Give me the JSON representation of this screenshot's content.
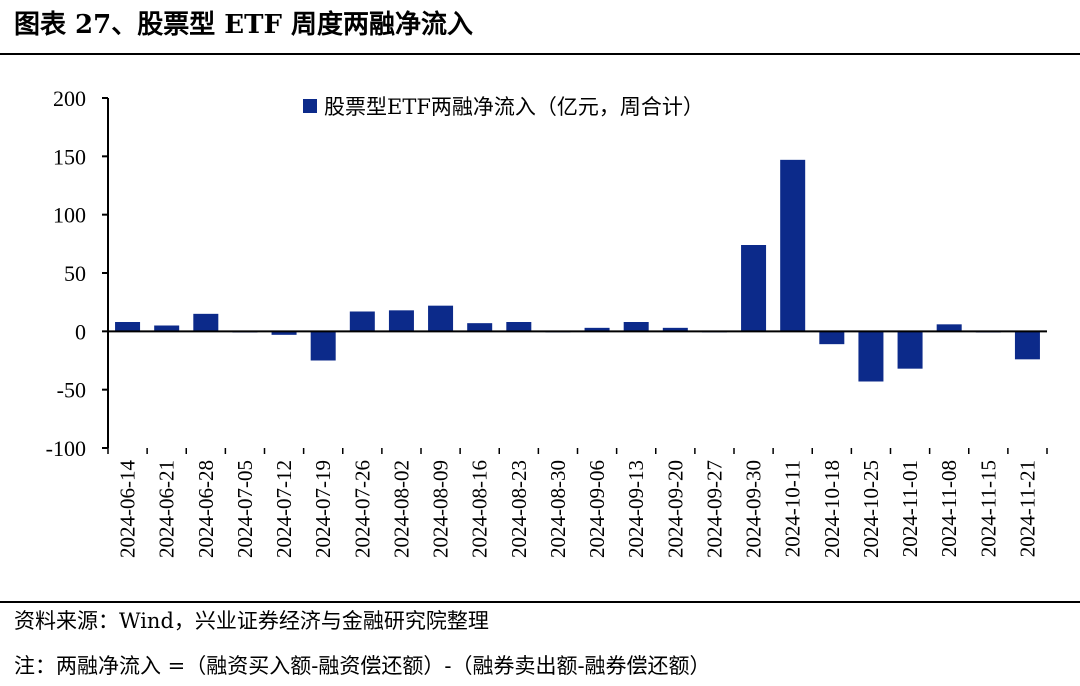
{
  "figure": {
    "title": "图表 27、股票型 ETF 周度两融净流入",
    "source": "资料来源：Wind，兴业证券经济与金融研究院整理",
    "note": "注：两融净流入 =（融资买入额-融资偿还额）-（融券卖出额-融券偿还额）"
  },
  "chart_data": {
    "type": "bar",
    "title": "",
    "xlabel": "",
    "ylabel": "",
    "ylim": [
      -100,
      200
    ],
    "yticks": [
      -100,
      -50,
      0,
      50,
      100,
      150,
      200
    ],
    "legend": {
      "position": "top-center"
    },
    "grid": false,
    "color": "#0c2a8a",
    "categories": [
      "2024-06-14",
      "2024-06-21",
      "2024-06-28",
      "2024-07-05",
      "2024-07-12",
      "2024-07-19",
      "2024-07-26",
      "2024-08-02",
      "2024-08-09",
      "2024-08-16",
      "2024-08-23",
      "2024-08-30",
      "2024-09-06",
      "2024-09-13",
      "2024-09-20",
      "2024-09-27",
      "2024-09-30",
      "2024-10-11",
      "2024-10-18",
      "2024-10-25",
      "2024-11-01",
      "2024-11-08",
      "2024-11-15",
      "2024-11-21"
    ],
    "series": [
      {
        "name": "股票型ETF两融净流入（亿元，周合计）",
        "values": [
          8,
          5,
          15,
          -1,
          -3,
          -25,
          17,
          18,
          22,
          7,
          8,
          0,
          3,
          8,
          3,
          0,
          74,
          147,
          -11,
          -43,
          -32,
          6,
          -1,
          -24
        ]
      }
    ]
  }
}
